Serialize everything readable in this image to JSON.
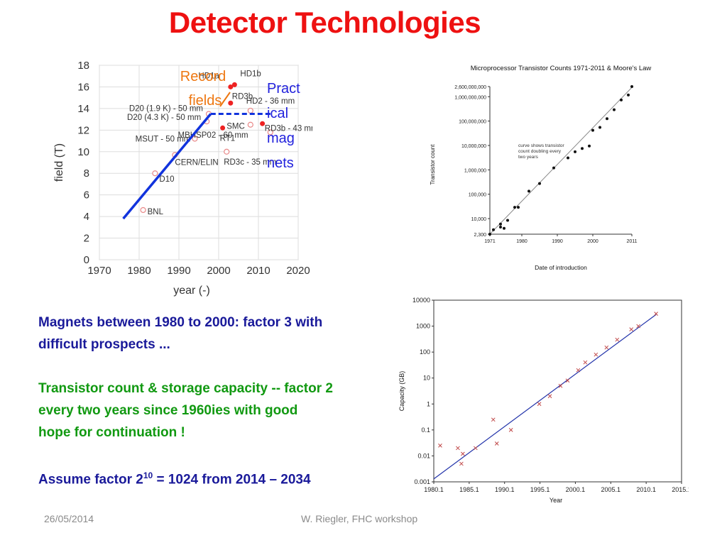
{
  "slide": {
    "title": "Detector Technologies",
    "paragraph1_line1": "Magnets between 1980 to 2000: factor 3 with",
    "paragraph1_line2": "difficult prospects ...",
    "paragraph2_line1": "Transistor count & storage capacity -- factor 2",
    "paragraph2_line2": "every two years since 1960ies with good",
    "paragraph2_line3": "hope for continuation !",
    "paragraph3_prefix": "Assume factor 2",
    "paragraph3_exponent": "10",
    "paragraph3_suffix": " = 1024 from 2014 – 2034",
    "footer_date": "26/05/2014",
    "footer_author": "W. Riegler, FHC workshop",
    "colors": {
      "title": "#ee1111",
      "blue_text": "#1a1a9a",
      "green_text": "#119911",
      "record_annotation": "#ee7711",
      "practical_annotation": "#2222dd",
      "trend_line": "#1133dd"
    }
  },
  "chart_data": [
    {
      "type": "scatter",
      "title": "",
      "xlabel": "year (-)",
      "ylabel": "field (T)",
      "xlim": [
        1970,
        2020
      ],
      "ylim": [
        0,
        18
      ],
      "x_ticks": [
        1970,
        1980,
        1990,
        2000,
        2010,
        2020
      ],
      "y_ticks": [
        0,
        2,
        4,
        6,
        8,
        10,
        12,
        14,
        16,
        18
      ],
      "grid": true,
      "points": [
        {
          "label": "BNL",
          "x": 1981,
          "y": 4.6
        },
        {
          "label": "D10",
          "x": 1984,
          "y": 8.0
        },
        {
          "label": "CERN/ELIN",
          "x": 1989,
          "y": 9.7
        },
        {
          "label": "MSUT - 50 mm",
          "x": 1994,
          "y": 11.2
        },
        {
          "label": "D20 (4.3 K) - 50 mm",
          "x": 1997,
          "y": 12.8
        },
        {
          "label": "D20 (1.9 K) - 50 mm",
          "x": 1997.5,
          "y": 13.5
        },
        {
          "label": "RT1",
          "x": 2001,
          "y": 12.2
        },
        {
          "label": "RD3c - 35 mm",
          "x": 2002,
          "y": 10.0
        },
        {
          "label": "RD3b",
          "x": 2003,
          "y": 14.5
        },
        {
          "label": "HD1a",
          "x": 2003,
          "y": 16.0
        },
        {
          "label": "HD1b",
          "x": 2004,
          "y": 16.2
        },
        {
          "label": "SMC",
          "x": 2008,
          "y": 12.5
        },
        {
          "label": "HD2 - 36 mm",
          "x": 2008,
          "y": 13.8
        },
        {
          "label": "MBHSP02 - 60 mm",
          "x": 2011,
          "y": 12.6
        },
        {
          "label": "RD3b - 43 mm",
          "x": 2013,
          "y": 11.8
        }
      ],
      "trend_line": [
        {
          "x": 1976,
          "y": 3.8
        },
        {
          "x": 1998,
          "y": 13.5
        },
        {
          "x": 2013,
          "y": 13.5
        }
      ],
      "annotations": {
        "record_line1": "Record",
        "record_line2": "fields",
        "practical_lines": [
          "Pract",
          "ical",
          "mag",
          "nets"
        ]
      }
    },
    {
      "type": "scatter",
      "title": "Microprocessor Transistor Counts 1971-2011 & Moore's Law",
      "xlabel": "Date of introduction",
      "ylabel": "Transistor count",
      "x_scale": "linear",
      "y_scale": "log",
      "xlim": [
        1971,
        2011
      ],
      "ylim": [
        2300,
        2600000000
      ],
      "x_ticks": [
        "1971",
        "1980",
        "1990",
        "2000",
        "2011"
      ],
      "y_tick_values": [
        2300,
        10000,
        100000,
        1000000,
        10000000,
        100000000,
        1000000000,
        2600000000
      ],
      "y_ticks": [
        "2,300",
        "10,000",
        "100,000",
        "1,000,000",
        "10,000,000",
        "100,000,000",
        "1,000,000,000",
        "2,600,000,000"
      ],
      "annotation": "curve shows transistor count doubling every two years",
      "points": [
        {
          "x": 1971,
          "y": 2300
        },
        {
          "x": 1972,
          "y": 3500
        },
        {
          "x": 1974,
          "y": 4500
        },
        {
          "x": 1974,
          "y": 6000
        },
        {
          "x": 1975,
          "y": 4000
        },
        {
          "x": 1976,
          "y": 8500
        },
        {
          "x": 1978,
          "y": 29000
        },
        {
          "x": 1979,
          "y": 29000
        },
        {
          "x": 1982,
          "y": 134000
        },
        {
          "x": 1985,
          "y": 275000
        },
        {
          "x": 1989,
          "y": 1200000
        },
        {
          "x": 1993,
          "y": 3100000
        },
        {
          "x": 1995,
          "y": 5500000
        },
        {
          "x": 1997,
          "y": 7500000
        },
        {
          "x": 1999,
          "y": 9500000
        },
        {
          "x": 2000,
          "y": 42000000
        },
        {
          "x": 2002,
          "y": 55000000
        },
        {
          "x": 2004,
          "y": 125000000
        },
        {
          "x": 2006,
          "y": 291000000
        },
        {
          "x": 2008,
          "y": 731000000
        },
        {
          "x": 2010,
          "y": 1170000000
        },
        {
          "x": 2011,
          "y": 2600000000
        }
      ],
      "trend": [
        {
          "x": 1971,
          "y": 2300
        },
        {
          "x": 2011,
          "y": 2400000000
        }
      ]
    },
    {
      "type": "scatter",
      "title": "",
      "xlabel": "Year",
      "ylabel": "Capacity (GB)",
      "x_scale": "linear",
      "y_scale": "log",
      "xlim": [
        1980.1,
        2015.1
      ],
      "ylim": [
        0.001,
        10000
      ],
      "x_ticks": [
        "1980.1",
        "1985.1",
        "1990.1",
        "1995.1",
        "2000.1",
        "2005.1",
        "2010.1",
        "2015.1"
      ],
      "y_tick_values": [
        0.001,
        0.01,
        0.1,
        1,
        10,
        100,
        1000,
        10000
      ],
      "y_ticks": [
        "0.001",
        "0.01",
        "0.1",
        "1",
        "10",
        "100",
        "1000",
        "10000"
      ],
      "points": [
        {
          "x": 1981.0,
          "y": 0.025
        },
        {
          "x": 1983.5,
          "y": 0.02
        },
        {
          "x": 1984.0,
          "y": 0.005
        },
        {
          "x": 1984.2,
          "y": 0.012
        },
        {
          "x": 1986.0,
          "y": 0.02
        },
        {
          "x": 1988.5,
          "y": 0.25
        },
        {
          "x": 1989.0,
          "y": 0.03
        },
        {
          "x": 1991.0,
          "y": 0.1
        },
        {
          "x": 1995.0,
          "y": 1.0
        },
        {
          "x": 1996.5,
          "y": 2.0
        },
        {
          "x": 1998.0,
          "y": 5.0
        },
        {
          "x": 1999.0,
          "y": 8.0
        },
        {
          "x": 2000.5,
          "y": 20.0
        },
        {
          "x": 2001.5,
          "y": 40.0
        },
        {
          "x": 2003.0,
          "y": 80.0
        },
        {
          "x": 2004.5,
          "y": 150.0
        },
        {
          "x": 2006.0,
          "y": 300.0
        },
        {
          "x": 2008.0,
          "y": 750.0
        },
        {
          "x": 2009.0,
          "y": 1000.0
        },
        {
          "x": 2011.5,
          "y": 3000.0
        }
      ],
      "trend": [
        {
          "x": 1980.1,
          "y": 0.0013
        },
        {
          "x": 2011.5,
          "y": 2800
        }
      ]
    }
  ]
}
